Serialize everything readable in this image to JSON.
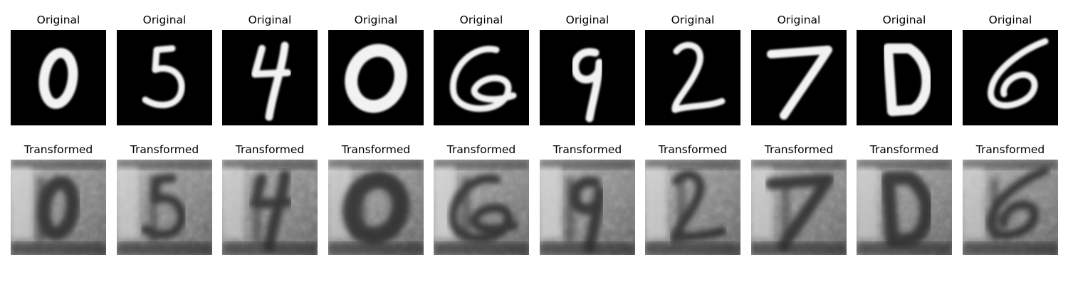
{
  "figure": {
    "rows": [
      {
        "row_id": "original",
        "titles": [
          "Original",
          "Original",
          "Original",
          "Original",
          "Original",
          "Original",
          "Original",
          "Original",
          "Original",
          "Original"
        ],
        "digits": [
          "0",
          "5",
          "4",
          "0",
          "6",
          "9",
          "2",
          "7",
          "0",
          "6"
        ]
      },
      {
        "row_id": "transformed",
        "titles": [
          "Transformed",
          "Transformed",
          "Transformed",
          "Transformed",
          "Transformed",
          "Transformed",
          "Transformed",
          "Transformed",
          "Transformed",
          "Transformed"
        ],
        "digits": [
          "0",
          "5",
          "4",
          "0",
          "6",
          "9",
          "2",
          "7",
          "0",
          "6"
        ]
      }
    ]
  },
  "colors": {
    "original_background": "#000000",
    "original_stroke": "#f2f2f2",
    "transformed_light": "#b8b8b8",
    "transformed_dark": "#2c2c2c"
  }
}
